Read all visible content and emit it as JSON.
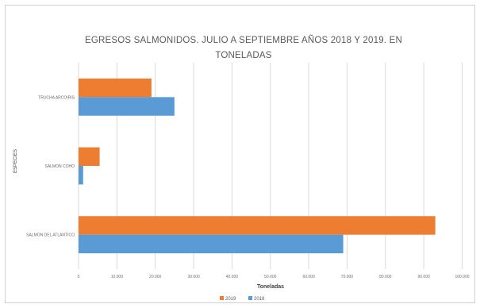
{
  "chart_data": {
    "type": "bar",
    "orientation": "horizontal",
    "title_line1": "EGRESOS SALMONIDOS. JULIO A SEPTIEMBRE AÑOS 2018 Y 2019. EN",
    "title_line2": "TONELADAS",
    "xlabel": "Toneladas",
    "ylabel": "ESPECIES",
    "categories": [
      "TRUCHA ARCOIRIS",
      "SALMON COHO",
      "SALMON DEL ATLANTICO"
    ],
    "series": [
      {
        "name": "2019",
        "color": "#ED7D31",
        "values": [
          19000,
          5500,
          93000
        ]
      },
      {
        "name": "2018",
        "color": "#5B9BD5",
        "values": [
          25000,
          1200,
          69000
        ]
      }
    ],
    "xlim": [
      0,
      103000
    ],
    "xticks": [
      0,
      10000,
      20000,
      30000,
      40000,
      50000,
      60000,
      70000,
      80000,
      90000,
      100000
    ],
    "xtick_labels": [
      "0",
      "10.000",
      "20.000",
      "30.000",
      "40.000",
      "50.000",
      "60.000",
      "70.000",
      "80.000",
      "90.000",
      "100.000"
    ],
    "grid": true,
    "legend_position": "bottom"
  }
}
